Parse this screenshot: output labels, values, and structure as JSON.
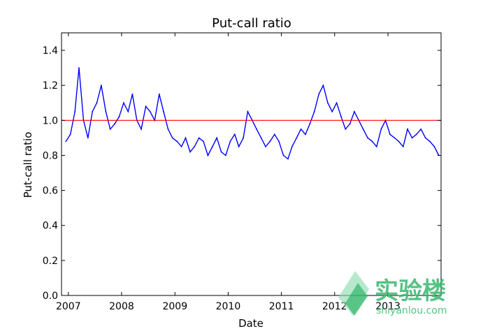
{
  "chart_data": {
    "type": "line",
    "title": "Put-call ratio",
    "xlabel": "Date",
    "ylabel": "Put-call ratio",
    "xlim": [
      "2006-11-15",
      "2013-12-31"
    ],
    "ylim": [
      0.0,
      1.5
    ],
    "x_ticks": [
      {
        "label": "2007",
        "date": "2007-01-01"
      },
      {
        "label": "2008",
        "date": "2008-01-01"
      },
      {
        "label": "2009",
        "date": "2009-01-01"
      },
      {
        "label": "2010",
        "date": "2010-01-01"
      },
      {
        "label": "2011",
        "date": "2011-01-01"
      },
      {
        "label": "2012",
        "date": "2012-01-01"
      },
      {
        "label": "2013",
        "date": "2013-01-01"
      }
    ],
    "y_ticks": [
      "0.0",
      "0.2",
      "0.4",
      "0.6",
      "0.8",
      "1.0",
      "1.2",
      "1.4"
    ],
    "grid": false,
    "reference_line": {
      "y": 1.0,
      "color": "#ff0000"
    },
    "series": [
      {
        "color": "#0000ff",
        "x": [
          "2006-12",
          "2007-01",
          "2007-02",
          "2007-03",
          "2007-04",
          "2007-05",
          "2007-06",
          "2007-07",
          "2007-08",
          "2007-09",
          "2007-10",
          "2007-11",
          "2007-12",
          "2008-01",
          "2008-02",
          "2008-03",
          "2008-04",
          "2008-05",
          "2008-06",
          "2008-07",
          "2008-08",
          "2008-09",
          "2008-10",
          "2008-11",
          "2008-12",
          "2009-01",
          "2009-02",
          "2009-03",
          "2009-04",
          "2009-05",
          "2009-06",
          "2009-07",
          "2009-08",
          "2009-09",
          "2009-10",
          "2009-11",
          "2009-12",
          "2010-01",
          "2010-02",
          "2010-03",
          "2010-04",
          "2010-05",
          "2010-06",
          "2010-07",
          "2010-08",
          "2010-09",
          "2010-10",
          "2010-11",
          "2010-12",
          "2011-01",
          "2011-02",
          "2011-03",
          "2011-04",
          "2011-05",
          "2011-06",
          "2011-07",
          "2011-08",
          "2011-09",
          "2011-10",
          "2011-11",
          "2011-12",
          "2012-01",
          "2012-02",
          "2012-03",
          "2012-04",
          "2012-05",
          "2012-06",
          "2012-07",
          "2012-08",
          "2012-09",
          "2012-10",
          "2012-11",
          "2012-12",
          "2013-01",
          "2013-02",
          "2013-03",
          "2013-04",
          "2013-05",
          "2013-06",
          "2013-07",
          "2013-08",
          "2013-09",
          "2013-10",
          "2013-11",
          "2013-12"
        ],
        "y": [
          0.88,
          0.92,
          1.05,
          1.3,
          1.0,
          0.9,
          1.05,
          1.1,
          1.2,
          1.05,
          0.95,
          0.98,
          1.02,
          1.1,
          1.05,
          1.15,
          1.0,
          0.95,
          1.08,
          1.05,
          1.0,
          1.15,
          1.05,
          0.95,
          0.9,
          0.88,
          0.85,
          0.9,
          0.82,
          0.85,
          0.9,
          0.88,
          0.8,
          0.85,
          0.9,
          0.82,
          0.8,
          0.88,
          0.92,
          0.85,
          0.9,
          1.05,
          1.0,
          0.95,
          0.9,
          0.85,
          0.88,
          0.92,
          0.88,
          0.8,
          0.78,
          0.85,
          0.9,
          0.95,
          0.92,
          0.98,
          1.05,
          1.15,
          1.2,
          1.1,
          1.05,
          1.1,
          1.02,
          0.95,
          0.98,
          1.05,
          1.0,
          0.95,
          0.9,
          0.88,
          0.85,
          0.95,
          1.0,
          0.92,
          0.9,
          0.88,
          0.85,
          0.95,
          0.9,
          0.92,
          0.95,
          0.9,
          0.88,
          0.85,
          0.8
        ]
      }
    ]
  },
  "watermark": {
    "text": "实验楼",
    "subtext": "shiyanlou.com",
    "color": "#39b86f"
  }
}
